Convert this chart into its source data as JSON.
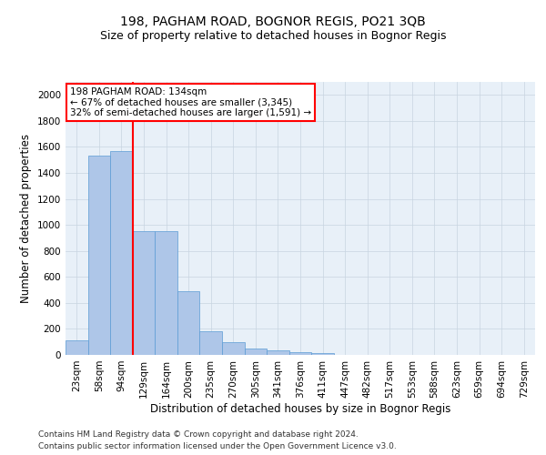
{
  "title1": "198, PAGHAM ROAD, BOGNOR REGIS, PO21 3QB",
  "title2": "Size of property relative to detached houses in Bognor Regis",
  "xlabel": "Distribution of detached houses by size in Bognor Regis",
  "ylabel": "Number of detached properties",
  "categories": [
    "23sqm",
    "58sqm",
    "94sqm",
    "129sqm",
    "164sqm",
    "200sqm",
    "235sqm",
    "270sqm",
    "305sqm",
    "341sqm",
    "376sqm",
    "411sqm",
    "447sqm",
    "482sqm",
    "517sqm",
    "553sqm",
    "588sqm",
    "623sqm",
    "659sqm",
    "694sqm",
    "729sqm"
  ],
  "values": [
    110,
    1535,
    1570,
    950,
    950,
    490,
    185,
    95,
    47,
    37,
    22,
    15,
    0,
    0,
    0,
    0,
    0,
    0,
    0,
    0,
    0
  ],
  "bar_color": "#aec6e8",
  "bar_edge_color": "#5b9bd5",
  "red_line_x": 2.5,
  "annotation_text": "198 PAGHAM ROAD: 134sqm\n← 67% of detached houses are smaller (3,345)\n32% of semi-detached houses are larger (1,591) →",
  "annotation_box_color": "white",
  "annotation_box_edge_color": "red",
  "ylim": [
    0,
    2100
  ],
  "yticks": [
    0,
    200,
    400,
    600,
    800,
    1000,
    1200,
    1400,
    1600,
    1800,
    2000
  ],
  "grid_color": "#c8d4e0",
  "background_color": "white",
  "axes_bg_color": "#e8f0f8",
  "footer1": "Contains HM Land Registry data © Crown copyright and database right 2024.",
  "footer2": "Contains public sector information licensed under the Open Government Licence v3.0.",
  "title1_fontsize": 10,
  "title2_fontsize": 9,
  "xlabel_fontsize": 8.5,
  "ylabel_fontsize": 8.5,
  "tick_fontsize": 7.5,
  "annotation_fontsize": 7.5,
  "footer_fontsize": 6.5
}
